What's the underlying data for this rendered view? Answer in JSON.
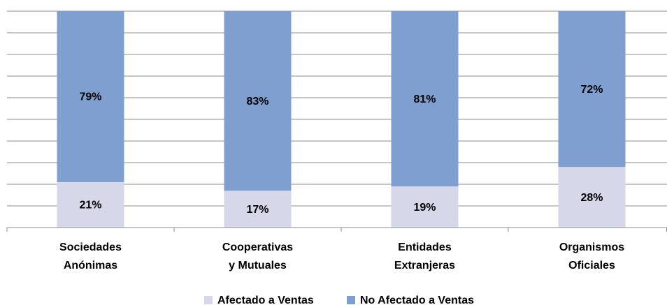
{
  "chart_data": {
    "type": "stacked_bar",
    "categories": [
      [
        "Sociedades",
        "Anónimas"
      ],
      [
        "Cooperativas",
        "y Mutuales"
      ],
      [
        "Entidades",
        "Extranjeras"
      ],
      [
        "Organismos",
        "Oficiales"
      ]
    ],
    "series": [
      {
        "name": "Afectado a Ventas",
        "color": "#d6d7e9",
        "values": [
          21,
          17,
          19,
          28
        ],
        "value_labels": [
          "21%",
          "17%",
          "19%",
          "28%"
        ]
      },
      {
        "name": "No Afectado a Ventas",
        "color": "#7f9fd0",
        "values": [
          79,
          83,
          81,
          72
        ],
        "value_labels": [
          "79%",
          "83%",
          "81%",
          "72%"
        ]
      }
    ],
    "ylim": [
      0,
      100
    ],
    "yticks": [
      0,
      10,
      20,
      30,
      40,
      50,
      60,
      70,
      80,
      90,
      100
    ],
    "grid": true,
    "legend": "bottom"
  }
}
